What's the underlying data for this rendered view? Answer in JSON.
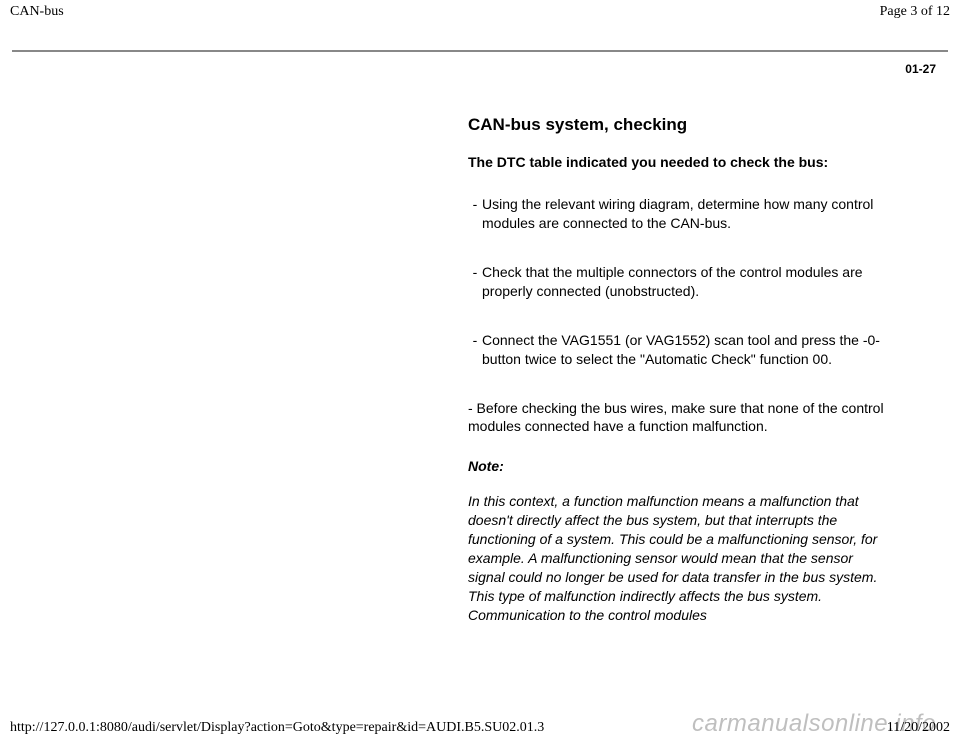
{
  "header": {
    "title": "CAN-bus",
    "page_label": "Page 3 of 12"
  },
  "page_number": "01-27",
  "main": {
    "title": "CAN-bus system, checking",
    "subtitle": "The DTC table indicated you needed to check the bus:",
    "bullets": [
      "Using the relevant wiring diagram, determine how many control modules are connected to the CAN-bus.",
      "Check that the multiple connectors of the control modules are properly connected (unobstructed).",
      "Connect the VAG1551 (or VAG1552) scan tool and press the -0- button twice to select the \"Automatic Check\" function 00."
    ],
    "plain_item": "- Before checking the bus wires, make sure that none of the control modules connected have a function malfunction.",
    "note_label": "Note:",
    "note_body": "In this context, a function malfunction means a malfunction that doesn't directly affect the bus system, but that interrupts the functioning of a system. This could be a malfunctioning sensor, for example. A malfunctioning sensor would mean that the sensor signal could no longer be used for data transfer in the bus system. This type of malfunction indirectly affects the bus system. Communication to the control modules"
  },
  "footer": {
    "url": "http://127.0.0.1:8080/audi/servlet/Display?action=Goto&type=repair&id=AUDI.B5.SU02.01.3",
    "date": "11/20/2002"
  },
  "watermark": "carmanualsonline.info"
}
